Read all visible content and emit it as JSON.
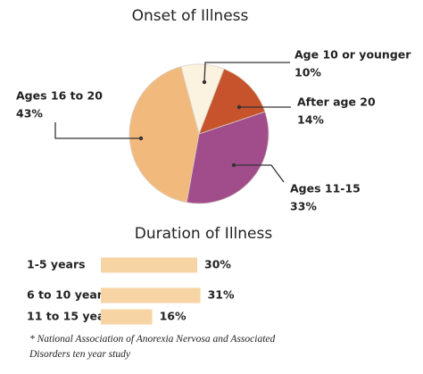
{
  "chart_data": [
    {
      "type": "pie",
      "title": "Onset of Illness",
      "categories": [
        "Age 10 or younger",
        "After age 20",
        "Ages 11-15",
        "Ages 16 to 20"
      ],
      "values": [
        10,
        14,
        33,
        43
      ],
      "value_labels": [
        "10%",
        "14%",
        "33%",
        "43%"
      ],
      "colors": [
        "#fbf2df",
        "#c6532b",
        "#a14d8c",
        "#f2b97c"
      ]
    },
    {
      "type": "bar",
      "title": "Duration of Illness",
      "categories": [
        "1-5 years",
        "6 to 10 years",
        "11 to 15 years"
      ],
      "values": [
        30,
        31,
        16
      ],
      "value_labels": [
        "30%",
        "31%",
        "16%"
      ],
      "color": "#f7d4a3"
    }
  ],
  "footnote": "* National Association of Anorexia Nervosa and Associated Disorders ten year study"
}
